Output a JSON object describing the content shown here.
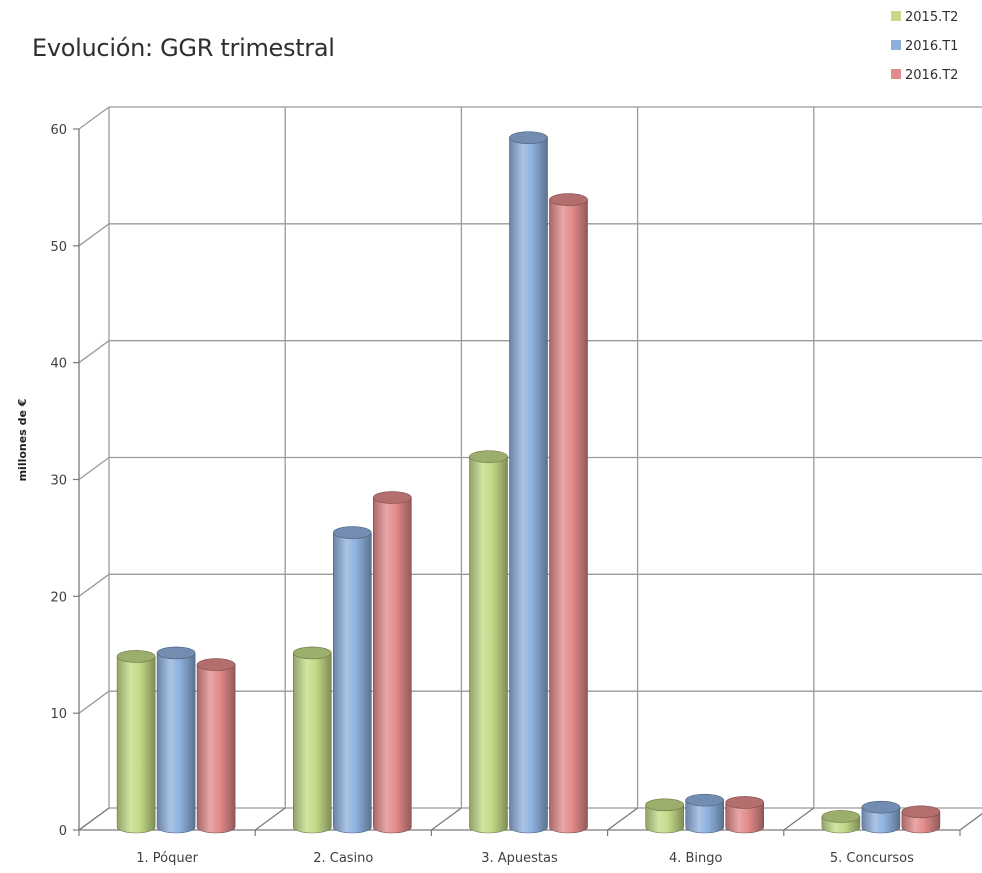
{
  "chart_data": {
    "type": "bar",
    "title": "Evolución: GGR trimestral",
    "xlabel": "",
    "ylabel": "millones de €",
    "ylim": [
      0,
      60
    ],
    "yticks": [
      0,
      10,
      20,
      30,
      40,
      50,
      60
    ],
    "grid": true,
    "legend_position": "top-right",
    "categories": [
      "1. Póquer",
      "2. Casino",
      "3. Apuestas",
      "4. Bingo",
      "5. Concursos"
    ],
    "series": [
      {
        "name": "2015.T2",
        "color": "#c3d986",
        "values": [
          14.6,
          14.9,
          31.7,
          1.9,
          0.9
        ]
      },
      {
        "name": "2016.T1",
        "color": "#8eb0dd",
        "values": [
          14.9,
          25.2,
          59.0,
          2.3,
          1.7
        ]
      },
      {
        "name": "2016.T2",
        "color": "#e18a8a",
        "values": [
          13.9,
          28.2,
          53.7,
          2.1,
          1.3
        ]
      }
    ]
  }
}
